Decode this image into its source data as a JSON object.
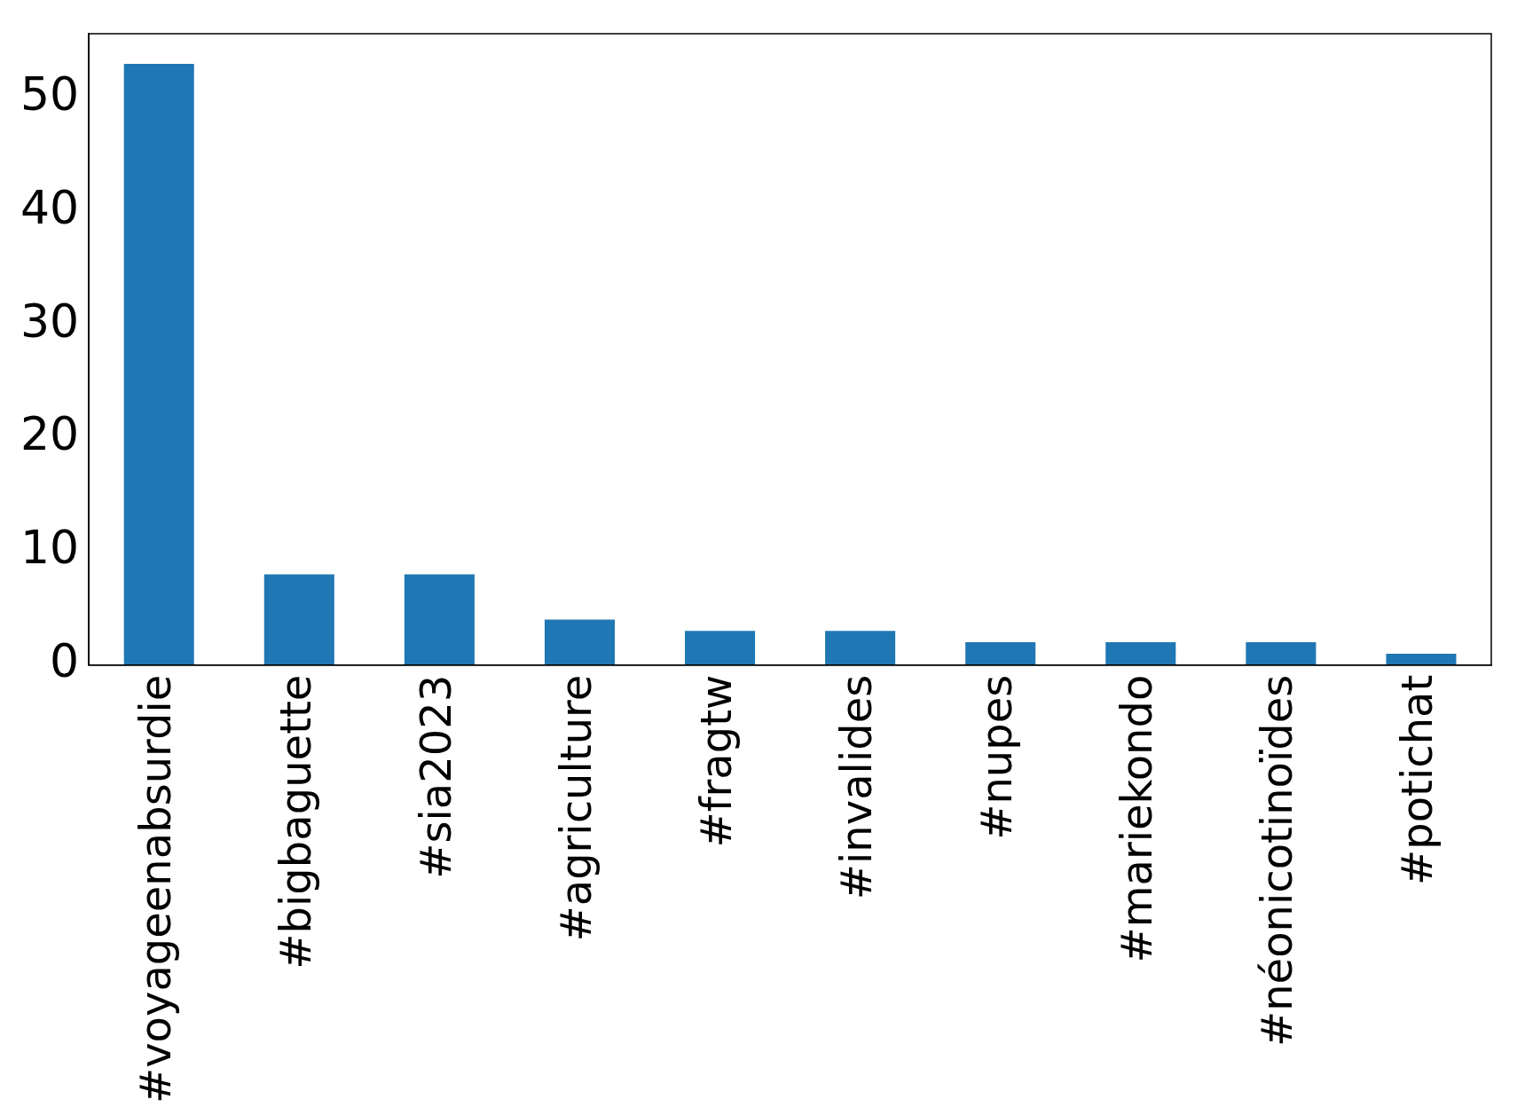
{
  "chart_data": {
    "type": "bar",
    "categories": [
      "#voyageenabsurdie",
      "#bigbaguette",
      "#sia2023",
      "#agriculture",
      "#fragtw",
      "#invalides",
      "#nupes",
      "#mariekondo",
      "#néonicotinoïdes",
      "#potichat"
    ],
    "values": [
      53,
      8,
      8,
      4,
      3,
      3,
      2,
      2,
      2,
      1
    ],
    "color": "#1f77b4",
    "ylim": [
      0,
      55.65
    ],
    "yticks": [
      0,
      10,
      20,
      30,
      40,
      50
    ],
    "grid": false,
    "legend": false
  }
}
